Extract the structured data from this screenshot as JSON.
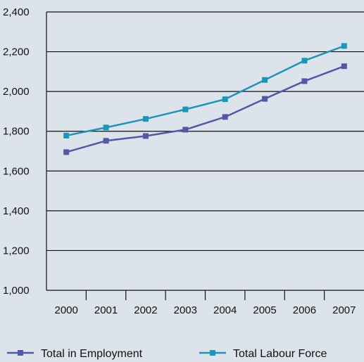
{
  "chart_data": {
    "type": "line",
    "categories": [
      "2000",
      "2001",
      "2002",
      "2003",
      "2004",
      "2005",
      "2006",
      "2007"
    ],
    "ylim": [
      1000,
      2400
    ],
    "yticks": [
      1000,
      1200,
      1400,
      1600,
      1800,
      2000,
      2200,
      2400
    ],
    "ytick_labels": [
      "1,000",
      "1,200",
      "1,400",
      "1,600",
      "1,800",
      "2,000",
      "2,200",
      "2,400"
    ],
    "grid": true,
    "legend_position": "bottom",
    "series": [
      {
        "name": "Total in Employment",
        "color": "#5159a6",
        "values": [
          1695,
          1752,
          1776,
          1808,
          1872,
          1963,
          2052,
          2127
        ]
      },
      {
        "name": "Total Labour Force",
        "color": "#1b95b8",
        "values": [
          1778,
          1819,
          1862,
          1910,
          1961,
          2058,
          2155,
          2229
        ]
      }
    ]
  }
}
